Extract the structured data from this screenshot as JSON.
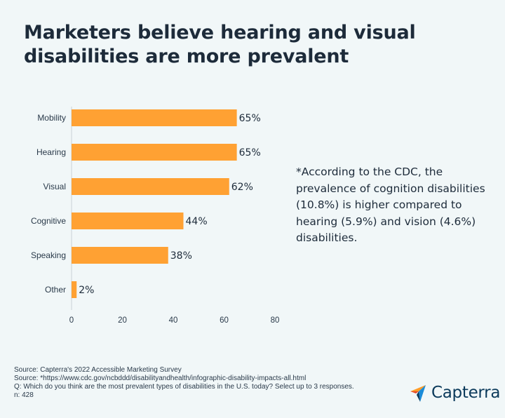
{
  "title_lines": [
    "Marketers believe hearing and visual",
    "disabilities are more prevalent"
  ],
  "chart_data": {
    "type": "bar",
    "orientation": "horizontal",
    "categories": [
      "Mobility",
      "Hearing",
      "Visual",
      "Cognitive",
      "Speaking",
      "Other"
    ],
    "values": [
      65,
      65,
      62,
      44,
      38,
      2
    ],
    "value_labels": [
      "65%",
      "65%",
      "62%",
      "44%",
      "38%",
      "2%"
    ],
    "xlim": [
      0,
      80
    ],
    "xticks": [
      0,
      20,
      40,
      60,
      80
    ],
    "grid": false,
    "bar_color": "#ffa133"
  },
  "note": "*According to the CDC, the prevalence of cognition disabilities (10.8%) is higher compared to hearing (5.9%) and vision (4.6%) disabilities.",
  "footer": {
    "source1": "Source: Capterra's 2022 Accessible Marketing Survey",
    "source2": "Source: *https://www.cdc.gov/ncbddd/disabilityandhealth/infographic-disability-impacts-all.html",
    "question": "Q: Which do you think are the most prevalent types of disabilities in the U.S. today? Select up to 3 responses.",
    "n": "n: 428"
  },
  "logo": {
    "text": "Capterra",
    "icon": "capterra-arrow-icon"
  },
  "colors": {
    "background": "#f1f7f8",
    "text": "#1d2b3a",
    "bar": "#ffa133",
    "logo_blue": "#0b3a5b"
  }
}
